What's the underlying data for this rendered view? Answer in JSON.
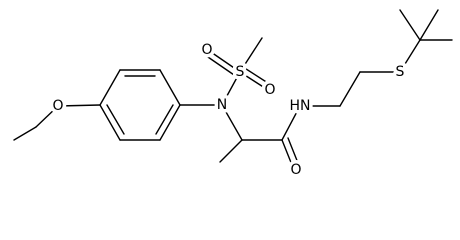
{
  "atoms": {
    "ether_oxygen": "O",
    "amine_nitrogen": "N",
    "sulfonyl_sulfur": "S",
    "sulfonyl_oxygen_1": "O",
    "sulfonyl_oxygen_2": "O",
    "amide_nitrogen": "HN",
    "carbonyl_oxygen": "O",
    "thioether_sulfur": "S"
  }
}
